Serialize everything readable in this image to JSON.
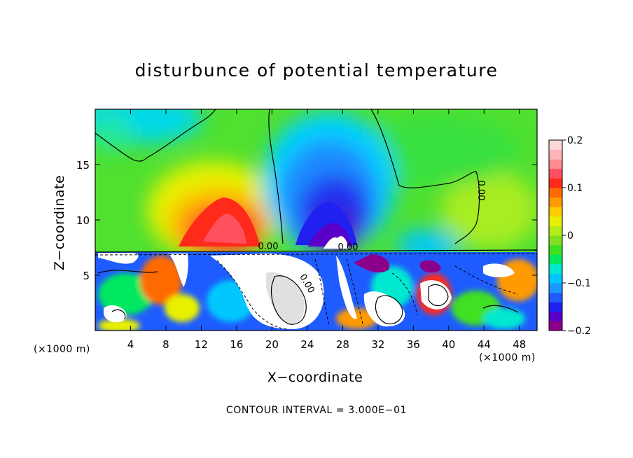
{
  "chart_data": {
    "type": "heatmap",
    "title": "disturbunce of potential temperature",
    "xlabel": "X−coordinate",
    "ylabel": "Z−coordinate",
    "x_unit": "(×1000 m)",
    "xlim": [
      0,
      50
    ],
    "ylim": [
      0,
      20
    ],
    "x_ticks": [
      4,
      8,
      12,
      16,
      20,
      24,
      28,
      32,
      36,
      40,
      44,
      48
    ],
    "y_ticks": [
      5,
      10,
      15
    ],
    "colorbar": {
      "range": [
        -0.2,
        0.2
      ],
      "tick_labels": [
        "0.2",
        "0.1",
        "0",
        "−0.1",
        "−0.2"
      ],
      "tick_values": [
        0.2,
        0.1,
        0,
        -0.1,
        -0.2
      ],
      "colors": [
        "#8a008a",
        "#5a00c8",
        "#2020f0",
        "#1e5cff",
        "#1a9aff",
        "#00c8ff",
        "#00e8d0",
        "#00e860",
        "#40e020",
        "#80e020",
        "#b4ee18",
        "#e8f000",
        "#ffcc00",
        "#ff9a00",
        "#ff6a00",
        "#ff2a1a",
        "#ff5060",
        "#ff8a90",
        "#ffb4b8",
        "#ffd6d8"
      ]
    },
    "contour_labels": [
      "0.00",
      "0.00",
      "0.00",
      "0.00"
    ],
    "contour_interval_note": "CONTOUR INTERVAL = 3.000E−01"
  }
}
